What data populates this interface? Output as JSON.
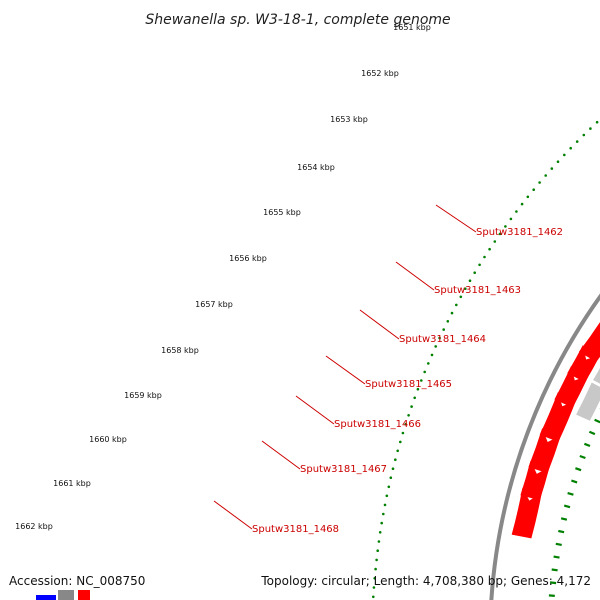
{
  "title": "Shewanella sp. W3-18-1, complete genome",
  "kbp_ticks": [
    "1651 kbp",
    "1652 kbp",
    "1653 kbp",
    "1654 kbp",
    "1655 kbp",
    "1656 kbp",
    "1657 kbp",
    "1658 kbp",
    "1659 kbp",
    "1660 kbp",
    "1661 kbp",
    "1662 kbp"
  ],
  "gene_labels": [
    "Sputw3181_1462",
    "Sputw3181_1463",
    "Sputw3181_1464",
    "Sputw3181_1465",
    "Sputw3181_1466",
    "Sputw3181_1467",
    "Sputw3181_1468"
  ],
  "footer": {
    "accession": "Accession: NC_008750",
    "summary": "Topology: circular; Length: 4,708,380 bp; Genes: 4,172"
  },
  "colors": {
    "cds": "#ff0000",
    "gene": "#6b8e23",
    "gene_other": "#c8c8c8",
    "backbone": "#888888",
    "label": "#cc0000",
    "dots": "#008000"
  }
}
